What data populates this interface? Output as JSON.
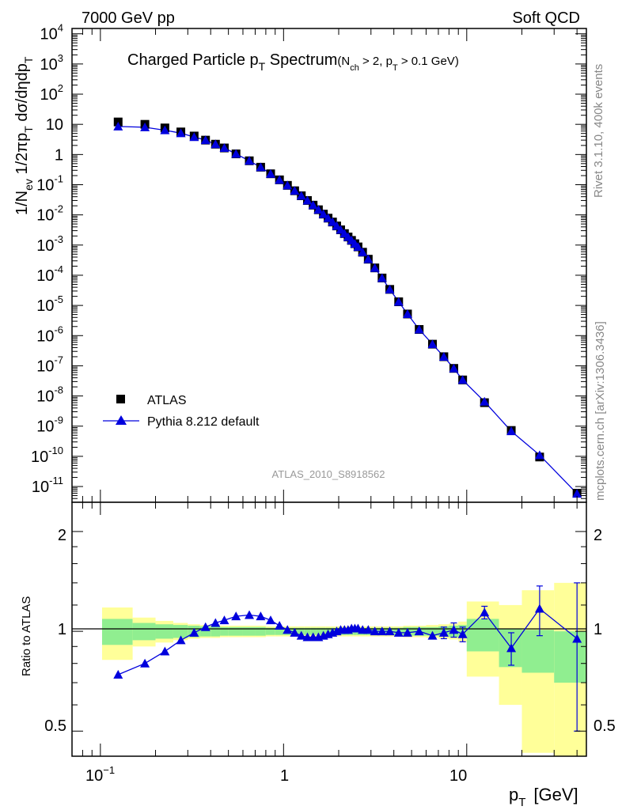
{
  "header": {
    "left": "7000 GeV pp",
    "right": "Soft QCD"
  },
  "side_text": {
    "rivet": "Rivet 3.1.10,  400k events",
    "mcplots": "mcplots.cern.ch [arXiv:1306.3436]"
  },
  "analysis_id": "ATLAS_2010_S8918562",
  "colors": {
    "data": "#000000",
    "mc": "#0000dd",
    "band_inner": "#90ee90",
    "band_outer": "#ffff99"
  },
  "chart_data": [
    {
      "type": "scatter",
      "title_main": "Charged Particle p",
      "title_main_sub": "T",
      "title_main_tail": " Spectrum",
      "title_cond_1": "(N",
      "title_cond_1_sub": "ch",
      "title_cond_2": " > 2, p",
      "title_cond_2_sub": "T",
      "title_cond_3": " > 0.1 GeV)",
      "ylabel_parts": {
        "a": "1/N",
        "a_sub": "ev",
        "b": " 1/2πp",
        "b_sub": "T",
        "c": " dσ/dηdp",
        "c_sub": "T"
      },
      "xscale": "log",
      "yscale": "log",
      "xlim": [
        0.07,
        45
      ],
      "ylim": [
        3e-12,
        15000
      ],
      "yticks": [
        {
          "base": "10",
          "exp": "4"
        },
        {
          "base": "10",
          "exp": "3"
        },
        {
          "base": "10",
          "exp": "2"
        },
        {
          "base": "10",
          "exp": ""
        },
        {
          "base": "1",
          "exp": ""
        },
        {
          "base": "10",
          "exp": "-1"
        },
        {
          "base": "10",
          "exp": "-2"
        },
        {
          "base": "10",
          "exp": "-3"
        },
        {
          "base": "10",
          "exp": "-4"
        },
        {
          "base": "10",
          "exp": "-5"
        },
        {
          "base": "10",
          "exp": "-6"
        },
        {
          "base": "10",
          "exp": "-7"
        },
        {
          "base": "10",
          "exp": "-8"
        },
        {
          "base": "10",
          "exp": "-9"
        },
        {
          "base": "10",
          "exp": "-10"
        },
        {
          "base": "10",
          "exp": "-11"
        }
      ],
      "legend_position": "lower-left",
      "legend": [
        "ATLAS",
        "Pythia 8.212 default"
      ],
      "series": [
        {
          "name": "ATLAS",
          "x": [
            0.125,
            0.175,
            0.225,
            0.275,
            0.325,
            0.375,
            0.425,
            0.475,
            0.55,
            0.65,
            0.75,
            0.85,
            0.95,
            1.05,
            1.15,
            1.25,
            1.35,
            1.45,
            1.55,
            1.65,
            1.75,
            1.85,
            1.95,
            2.05,
            2.15,
            2.25,
            2.35,
            2.45,
            2.55,
            2.7,
            2.9,
            3.15,
            3.45,
            3.8,
            4.25,
            4.75,
            5.5,
            6.5,
            7.5,
            8.5,
            9.5,
            12.5,
            17.5,
            25,
            40
          ],
          "y": [
            12,
            10,
            7.6,
            5.6,
            4.1,
            3.0,
            2.2,
            1.65,
            1.05,
            0.62,
            0.38,
            0.23,
            0.145,
            0.095,
            0.063,
            0.043,
            0.03,
            0.021,
            0.0148,
            0.0106,
            0.0078,
            0.0058,
            0.0043,
            0.0032,
            0.0024,
            0.00185,
            0.00143,
            0.00111,
            0.00087,
            0.00058,
            0.00034,
            0.000175,
            8.1e-05,
            3.4e-05,
            1.32e-05,
            5.2e-06,
            1.6e-06,
            5.2e-07,
            2e-07,
            8.2e-08,
            3.4e-08,
            6e-09,
            7.2e-10,
            9.5e-11,
            6e-12
          ]
        },
        {
          "name": "Pythia 8.212 default",
          "x": [
            0.125,
            0.175,
            0.225,
            0.275,
            0.325,
            0.375,
            0.425,
            0.475,
            0.55,
            0.65,
            0.75,
            0.85,
            0.95,
            1.05,
            1.15,
            1.25,
            1.35,
            1.45,
            1.55,
            1.65,
            1.75,
            1.85,
            1.95,
            2.05,
            2.15,
            2.25,
            2.35,
            2.45,
            2.55,
            2.7,
            2.9,
            3.15,
            3.45,
            3.8,
            4.25,
            4.75,
            5.5,
            6.5,
            7.5,
            8.5,
            9.5,
            12.5,
            17.5,
            25,
            40
          ],
          "y": [
            8.5,
            8.0,
            6.4,
            5.1,
            3.8,
            3.0,
            2.2,
            1.65,
            1.05,
            0.62,
            0.38,
            0.23,
            0.145,
            0.095,
            0.063,
            0.043,
            0.03,
            0.021,
            0.0148,
            0.0106,
            0.0078,
            0.0058,
            0.0043,
            0.0032,
            0.0024,
            0.00185,
            0.00143,
            0.00111,
            0.00087,
            0.00058,
            0.00034,
            0.000175,
            8.1e-05,
            3.4e-05,
            1.32e-05,
            5.2e-06,
            1.6e-06,
            5.2e-07,
            2e-07,
            8.2e-08,
            3.4e-08,
            6.5e-09,
            6.8e-10,
            1.1e-10,
            5.8e-12
          ]
        }
      ]
    },
    {
      "type": "line",
      "ylabel": "Ratio to ATLAS",
      "xlabel": "p",
      "xlabel_sub": "T",
      "xlabel_unit": "[GeV]",
      "xscale": "log",
      "yscale": "log",
      "xlim": [
        0.07,
        45
      ],
      "ylim": [
        0.42,
        2.45
      ],
      "yticks_left": [
        "2",
        "1",
        "0.5"
      ],
      "yticks_right": [
        "2",
        "1",
        "0.5"
      ],
      "xticks": [
        {
          "base": "10",
          "exp": "−1"
        },
        {
          "base": "1",
          "exp": ""
        },
        {
          "base": "10",
          "exp": ""
        }
      ],
      "band_edges": [
        0.1,
        0.15,
        0.2,
        0.25,
        0.3,
        0.35,
        0.4,
        0.45,
        0.5,
        0.6,
        0.7,
        0.8,
        0.9,
        1.0,
        1.1,
        1.2,
        1.3,
        1.4,
        1.5,
        1.6,
        1.7,
        1.8,
        1.9,
        2.0,
        2.1,
        2.2,
        2.3,
        2.4,
        2.5,
        2.6,
        2.8,
        3.0,
        3.3,
        3.6,
        4.0,
        4.5,
        5.0,
        6.0,
        7.0,
        8.0,
        9.0,
        10,
        15,
        20,
        30,
        50
      ],
      "band_inner_half": [
        0.09,
        0.06,
        0.05,
        0.045,
        0.04,
        0.035,
        0.035,
        0.03,
        0.03,
        0.03,
        0.03,
        0.025,
        0.025,
        0.025,
        0.025,
        0.025,
        0.025,
        0.025,
        0.025,
        0.025,
        0.025,
        0.025,
        0.025,
        0.025,
        0.025,
        0.025,
        0.025,
        0.025,
        0.025,
        0.025,
        0.025,
        0.025,
        0.025,
        0.025,
        0.025,
        0.03,
        0.03,
        0.03,
        0.035,
        0.04,
        0.045,
        0.11,
        0.12,
        0.13,
        0.15
      ],
      "band_outer_half": [
        0.18,
        0.1,
        0.075,
        0.06,
        0.05,
        0.045,
        0.045,
        0.04,
        0.04,
        0.04,
        0.04,
        0.035,
        0.035,
        0.035,
        0.035,
        0.035,
        0.035,
        0.035,
        0.035,
        0.035,
        0.035,
        0.035,
        0.035,
        0.035,
        0.035,
        0.035,
        0.035,
        0.035,
        0.035,
        0.035,
        0.035,
        0.035,
        0.035,
        0.035,
        0.035,
        0.04,
        0.04,
        0.045,
        0.05,
        0.055,
        0.07,
        0.25,
        0.3,
        0.45,
        0.55
      ],
      "band_center": [
        1.0,
        1.0,
        1.0,
        1.0,
        1.0,
        1.0,
        1.0,
        1.0,
        1.0,
        1.0,
        1.0,
        1.0,
        1.0,
        1.0,
        1.0,
        1.0,
        1.0,
        1.0,
        1.0,
        1.0,
        1.0,
        1.0,
        1.0,
        1.0,
        1.0,
        1.0,
        1.0,
        1.0,
        1.0,
        1.0,
        1.0,
        1.0,
        1.0,
        1.0,
        1.0,
        1.0,
        1.0,
        1.0,
        1.0,
        1.0,
        1.0,
        0.98,
        0.9,
        0.88,
        0.85
      ],
      "series": [
        {
          "name": "Pythia 8.212 default",
          "x": [
            0.125,
            0.175,
            0.225,
            0.275,
            0.325,
            0.375,
            0.425,
            0.475,
            0.55,
            0.65,
            0.75,
            0.85,
            0.95,
            1.05,
            1.15,
            1.25,
            1.35,
            1.45,
            1.55,
            1.65,
            1.75,
            1.85,
            1.95,
            2.05,
            2.15,
            2.25,
            2.35,
            2.45,
            2.55,
            2.7,
            2.9,
            3.15,
            3.45,
            3.8,
            4.25,
            4.75,
            5.5,
            6.5,
            7.5,
            8.5,
            9.5,
            12.5,
            17.5,
            25,
            40
          ],
          "y": [
            0.74,
            0.8,
            0.87,
            0.94,
            0.99,
            1.03,
            1.06,
            1.08,
            1.11,
            1.12,
            1.11,
            1.08,
            1.04,
            1.01,
            0.99,
            0.97,
            0.96,
            0.96,
            0.96,
            0.97,
            0.98,
            0.99,
            1.0,
            1.01,
            1.01,
            1.01,
            1.02,
            1.02,
            1.02,
            1.01,
            1.01,
            1.0,
            1.0,
            1.0,
            0.99,
            0.99,
            1.0,
            0.97,
            0.99,
            1.01,
            0.98,
            1.14,
            0.89,
            1.17,
            0.95
          ],
          "err": [
            0,
            0,
            0,
            0,
            0,
            0,
            0,
            0,
            0,
            0,
            0,
            0,
            0,
            0,
            0,
            0,
            0,
            0,
            0,
            0,
            0,
            0,
            0,
            0,
            0,
            0,
            0,
            0,
            0,
            0,
            0,
            0,
            0,
            0,
            0,
            0,
            0,
            0,
            0.04,
            0.05,
            0.05,
            0.05,
            0.1,
            0.2,
            0.45
          ]
        }
      ]
    }
  ]
}
